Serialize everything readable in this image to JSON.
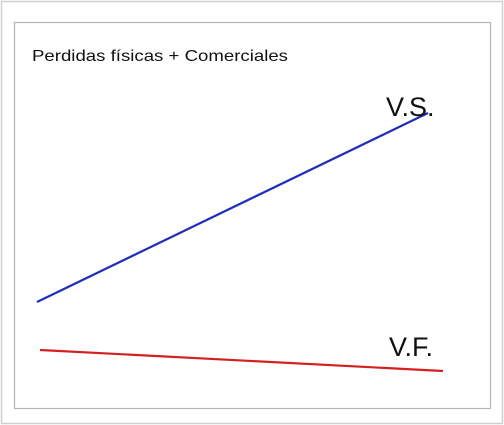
{
  "title": "Perdidas físicas + Comerciales",
  "lines": [
    {
      "label": "V.S."
    },
    {
      "label": "V.F."
    }
  ]
}
